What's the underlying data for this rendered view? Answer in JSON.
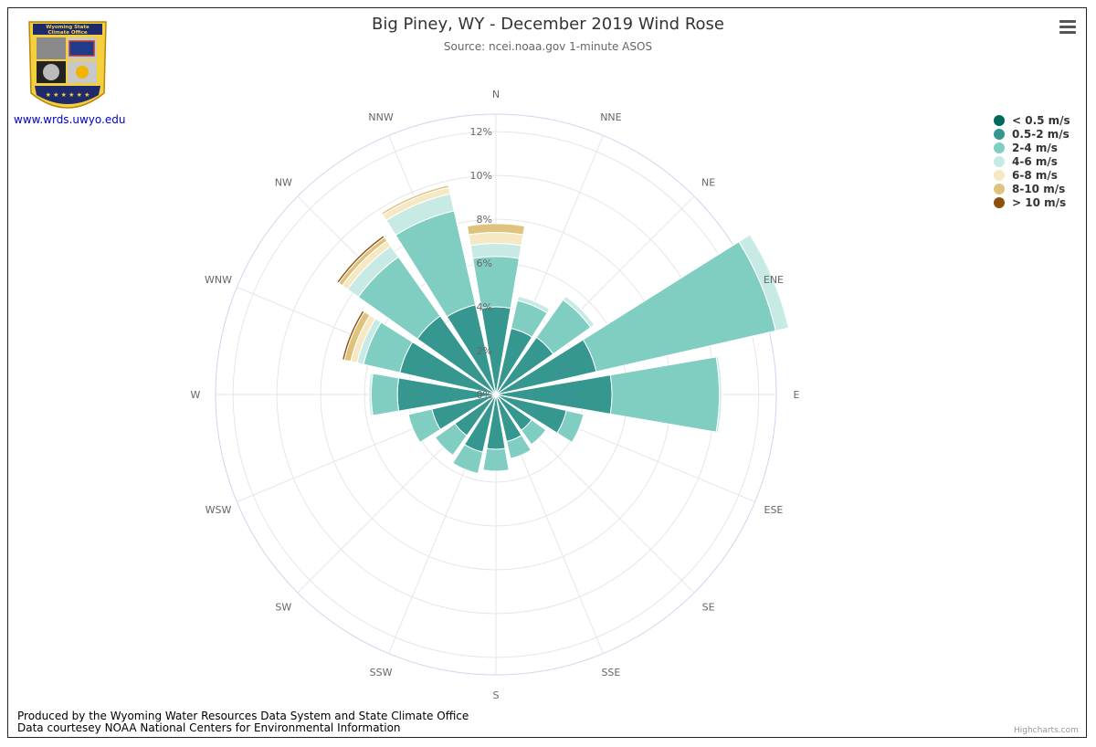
{
  "title": "Big Piney, WY - December 2019 Wind Rose",
  "subtitle": "Source: ncei.noaa.gov 1-minute ASOS",
  "logo": {
    "text_top": "Wyoming State",
    "text_bottom": "Climate Office",
    "url": "www.wrds.uwyo.edu"
  },
  "footer": {
    "line1": "Produced by the Wyoming Water Resources Data System and State Climate Office",
    "line2": "Data courtesey NOAA National Centers for Environmental Information"
  },
  "credits": "Highcharts.com",
  "menu_icon": "hamburger-menu-icon",
  "chart_data": {
    "type": "windrose",
    "directions": [
      "N",
      "NNE",
      "NE",
      "ENE",
      "E",
      "ESE",
      "SE",
      "SSE",
      "S",
      "SSW",
      "SW",
      "WSW",
      "W",
      "WNW",
      "NW",
      "NNW"
    ],
    "y_ticks": [
      "0%",
      "2%",
      "4%",
      "6%",
      "8%",
      "10%",
      "12%"
    ],
    "ylim": [
      0,
      12.8
    ],
    "series": [
      {
        "name": "< 0.5 m/s",
        "color": "#00695c",
        "values": [
          0,
          0,
          0,
          0,
          0,
          0,
          0,
          0,
          0,
          0,
          0,
          0,
          0,
          0,
          0,
          0
        ]
      },
      {
        "name": "0.5-2 m/s",
        "color": "#35978f",
        "values": [
          4.0,
          3.1,
          3.2,
          4.7,
          5.3,
          3.3,
          2.0,
          2.2,
          2.5,
          2.7,
          2.3,
          3.0,
          4.5,
          4.5,
          4.4,
          4.2
        ]
      },
      {
        "name": "2-4 m/s",
        "color": "#80cdc1",
        "values": [
          2.3,
          1.3,
          2.1,
          8.4,
          4.9,
          0.8,
          0.8,
          0.8,
          1.0,
          1.0,
          1.1,
          1.1,
          1.2,
          1.7,
          3.3,
          4.4
        ]
      },
      {
        "name": "4-6 m/s",
        "color": "#c7eae5",
        "values": [
          0.6,
          0.2,
          0.2,
          0.6,
          0.1,
          0,
          0,
          0,
          0,
          0,
          0,
          0,
          0.1,
          0.3,
          0.6,
          0.8
        ]
      },
      {
        "name": "6-8 m/s",
        "color": "#f6e8c3",
        "values": [
          0.5,
          0,
          0,
          0,
          0,
          0,
          0,
          0,
          0,
          0,
          0,
          0,
          0,
          0.3,
          0.3,
          0.3
        ]
      },
      {
        "name": "8-10 m/s",
        "color": "#dfc27d",
        "values": [
          0.4,
          0,
          0,
          0,
          0,
          0,
          0,
          0,
          0,
          0,
          0,
          0,
          0,
          0.3,
          0.2,
          0.1
        ]
      },
      {
        "name": "> 10 m/s",
        "color": "#8c510a",
        "values": [
          0,
          0,
          0,
          0,
          0,
          0,
          0,
          0,
          0,
          0,
          0,
          0,
          0,
          0.1,
          0.1,
          0
        ]
      }
    ]
  }
}
